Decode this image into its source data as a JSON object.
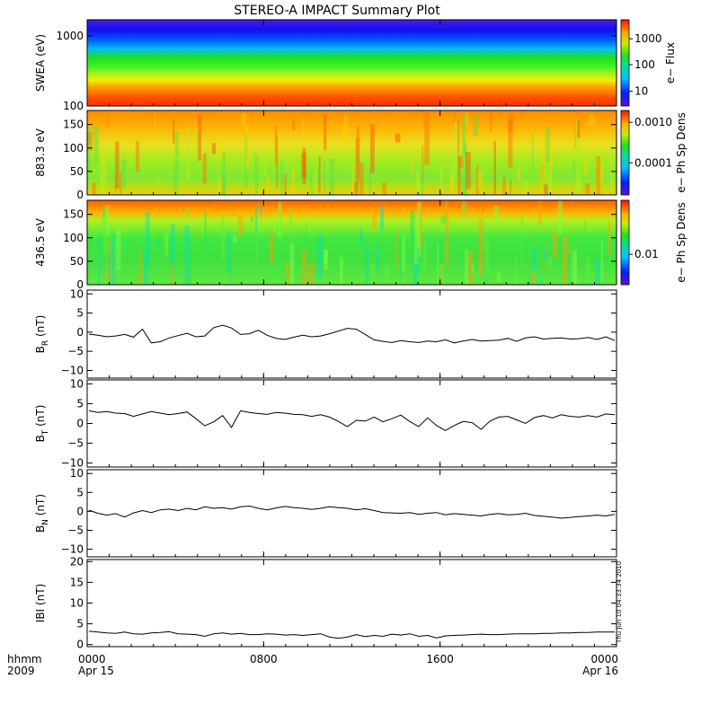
{
  "chart_data": {
    "type": "heatmap",
    "title": "STEREO-A IMPACT Summary Plot",
    "x_axis": {
      "tick_labels": [
        "0000",
        "0800",
        "1600",
        "0000"
      ],
      "date_labels": [
        "Apr 15",
        "",
        "",
        "Apr 16"
      ],
      "hhmm_label": "hhmm",
      "year_label": "2009"
    },
    "timestamp": "Thu Jun 10 04:33:34 2010",
    "panels": [
      {
        "id": "swea",
        "type": "heatmap",
        "ylabel": "SWEA (eV)",
        "y_scale": "log",
        "ylim": [
          100,
          1700
        ],
        "y_ticks": [
          "1000",
          "100"
        ],
        "colorbar_label": "e− Flux",
        "colorbar_ticks": [
          "1000",
          "100",
          "10"
        ],
        "colorbar_scale": "log"
      },
      {
        "id": "pad883",
        "type": "heatmap",
        "ylabel": "883.3 eV",
        "ylim": [
          0,
          180
        ],
        "y_ticks": [
          "150",
          "100",
          "50",
          "0"
        ],
        "colorbar_label": "e− Ph Sp Dens",
        "colorbar_ticks": [
          "0.0010",
          "0.0001"
        ],
        "colorbar_scale": "log"
      },
      {
        "id": "pad436",
        "type": "heatmap",
        "ylabel": "436.5 eV",
        "ylim": [
          0,
          180
        ],
        "y_ticks": [
          "150",
          "100",
          "50",
          "0"
        ],
        "colorbar_label": "e− Ph Sp Dens",
        "colorbar_ticks": [
          "0.01"
        ],
        "colorbar_scale": "log"
      },
      {
        "id": "br",
        "type": "line",
        "ylabel_main": "B",
        "ylabel_sub": "R",
        "ylabel_unit": "(nT)",
        "ylim": [
          -12,
          11
        ],
        "y_ticks": [
          "10",
          "5",
          "0",
          "−5",
          "−10"
        ],
        "values": [
          -0.5,
          -0.8,
          -1.2,
          -1.0,
          -0.6,
          -1.3,
          0.8,
          -2.8,
          -2.5,
          -1.5,
          -0.9,
          -0.3,
          -1.2,
          -1.0,
          1.2,
          1.8,
          1.1,
          -0.6,
          -0.4,
          0.5,
          -0.8,
          -1.6,
          -1.9,
          -1.3,
          -0.8,
          -1.2,
          -1.0,
          -0.4,
          0.3,
          1.0,
          0.8,
          -0.6,
          -2.0,
          -2.4,
          -2.7,
          -2.2,
          -2.5,
          -2.7,
          -2.3,
          -2.5,
          -2.0,
          -2.8,
          -2.3,
          -1.9,
          -2.3,
          -2.2,
          -2.1,
          -1.6,
          -2.4,
          -1.5,
          -1.2,
          -1.8,
          -1.6,
          -1.5,
          -1.8,
          -1.7,
          -1.4,
          -1.9,
          -1.2,
          -2.2
        ]
      },
      {
        "id": "bt",
        "type": "line",
        "ylabel_main": "B",
        "ylabel_sub": "T",
        "ylabel_unit": "(nT)",
        "ylim": [
          -11,
          11
        ],
        "y_ticks": [
          "10",
          "5",
          "0",
          "−5",
          "−10"
        ],
        "values": [
          3.2,
          2.8,
          3.0,
          2.6,
          2.5,
          1.8,
          2.4,
          3.0,
          2.6,
          2.2,
          2.5,
          2.9,
          1.2,
          -0.6,
          0.4,
          2.0,
          -1.0,
          3.2,
          2.8,
          2.5,
          2.3,
          2.8,
          2.6,
          2.3,
          2.2,
          1.8,
          2.2,
          1.6,
          0.5,
          -0.8,
          0.8,
          0.6,
          1.6,
          0.4,
          1.2,
          2.1,
          0.5,
          -0.8,
          1.4,
          -0.5,
          -1.8,
          -0.5,
          0.5,
          0.2,
          -1.5,
          0.6,
          1.6,
          1.8,
          0.9,
          0.0,
          1.5,
          2.0,
          1.4,
          2.2,
          1.8,
          1.6,
          2.0,
          1.6,
          2.4,
          2.2
        ]
      },
      {
        "id": "bn",
        "type": "line",
        "ylabel_main": "B",
        "ylabel_sub": "N",
        "ylabel_unit": "(nT)",
        "ylim": [
          -12,
          11
        ],
        "y_ticks": [
          "10",
          "5",
          "0",
          "−5",
          "−10"
        ],
        "values": [
          0.3,
          -0.5,
          -1.0,
          -0.6,
          -1.5,
          -0.4,
          0.2,
          -0.3,
          0.4,
          0.6,
          0.2,
          0.8,
          0.4,
          1.2,
          0.8,
          1.0,
          0.6,
          1.2,
          1.4,
          0.8,
          0.4,
          0.9,
          1.3,
          1.0,
          0.8,
          0.5,
          0.8,
          1.2,
          1.0,
          0.8,
          0.4,
          0.7,
          0.2,
          -0.3,
          -0.4,
          -0.5,
          -0.3,
          -0.8,
          -0.5,
          -0.3,
          -0.9,
          -0.6,
          -0.8,
          -1.0,
          -1.2,
          -0.8,
          -0.6,
          -0.9,
          -0.8,
          -0.5,
          -1.1,
          -1.3,
          -1.5,
          -1.8,
          -1.6,
          -1.4,
          -1.2,
          -1.0,
          -1.2,
          -0.8
        ]
      },
      {
        "id": "bmag",
        "type": "line",
        "ylabel_main": "IBI",
        "ylabel_sub": "",
        "ylabel_unit": "(nT)",
        "ylim": [
          -0.5,
          20.5
        ],
        "y_ticks": [
          "20",
          "15",
          "10",
          "5",
          "0"
        ],
        "values": [
          3.2,
          3.0,
          2.8,
          2.7,
          3.0,
          2.6,
          2.5,
          2.8,
          2.9,
          3.1,
          2.6,
          2.5,
          2.4,
          2.0,
          2.6,
          2.8,
          2.5,
          2.7,
          2.4,
          2.4,
          2.6,
          2.5,
          2.3,
          2.4,
          2.2,
          2.4,
          2.6,
          1.8,
          1.5,
          1.8,
          2.4,
          1.9,
          2.2,
          2.0,
          2.5,
          2.3,
          2.6,
          2.0,
          2.2,
          1.6,
          2.1,
          2.2,
          2.3,
          2.4,
          2.5,
          2.4,
          2.4,
          2.5,
          2.6,
          2.6,
          2.6,
          2.7,
          2.7,
          2.8,
          2.8,
          2.9,
          2.9,
          3.0,
          3.0,
          3.0
        ]
      }
    ]
  }
}
